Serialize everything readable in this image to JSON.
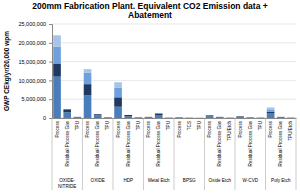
{
  "chart_data": {
    "type": "bar",
    "title": "200mm Fabrication Plant.  Equivalent CO2 Emission data + Abatement",
    "y_label": "GWP CEkg/yr/20,000 wpm",
    "stacked": true,
    "grid": true,
    "categories": [
      "Process",
      "Residual Process Gas",
      "TPU",
      "Process",
      "Residual Process Gas",
      "TPU",
      "Process",
      "Residual Process Gas",
      "TPU",
      "Process",
      "Residual Process Gas",
      "TPU",
      "Process",
      "TCS",
      "TPU",
      "Process",
      "Residual Process Gas",
      "TPU/Etch",
      "Process",
      "Residual Process Gas",
      "TPU",
      "Process",
      "Residual Process Gas",
      "TPU/Etch"
    ],
    "groups": [
      "OXIDE-NITRIDE",
      "OXIDE",
      "HDP",
      "Metal Etch",
      "BPSG",
      "Oxide Etch",
      "W-CVD",
      "Poly Etch"
    ],
    "ylim": [
      0,
      25000000
    ],
    "yticks": [
      {
        "value": 0,
        "label": "0"
      },
      {
        "value": 5000000,
        "label": "5,000,000"
      },
      {
        "value": 10000000,
        "label": "10,000,000"
      },
      {
        "value": 15000000,
        "label": "15,000,000"
      },
      {
        "value": 20000000,
        "label": "20,000,000"
      },
      {
        "value": 25000000,
        "label": "25,000,000"
      }
    ],
    "series": [
      {
        "color": "#4a7ebb",
        "values": [
          11000000,
          1500000,
          200000,
          6000000,
          700000,
          150000,
          3000000,
          500000,
          150000,
          200000,
          800000,
          50000,
          150000,
          80000,
          30000,
          500000,
          200000,
          50000,
          400000,
          150000,
          50000,
          1200000,
          200000,
          50000
        ]
      },
      {
        "color": "#1f3864",
        "values": [
          3500000,
          800000,
          100000,
          3000000,
          300000,
          50000,
          2500000,
          300000,
          50000,
          100000,
          400000,
          50000,
          50000,
          20000,
          20000,
          200000,
          100000,
          50000,
          100000,
          50000,
          50000,
          500000,
          100000,
          50000
        ]
      },
      {
        "color": "#6fa0dc",
        "values": [
          4500000,
          0,
          0,
          3000000,
          0,
          0,
          2500000,
          0,
          0,
          0,
          0,
          0,
          0,
          0,
          0,
          0,
          0,
          0,
          0,
          0,
          0,
          600000,
          0,
          0
        ]
      },
      {
        "color": "#a6c4e8",
        "values": [
          3000000,
          0,
          0,
          1000000,
          0,
          0,
          1500000,
          0,
          0,
          0,
          0,
          0,
          0,
          0,
          0,
          0,
          0,
          0,
          0,
          0,
          0,
          500000,
          0,
          0
        ]
      }
    ]
  }
}
